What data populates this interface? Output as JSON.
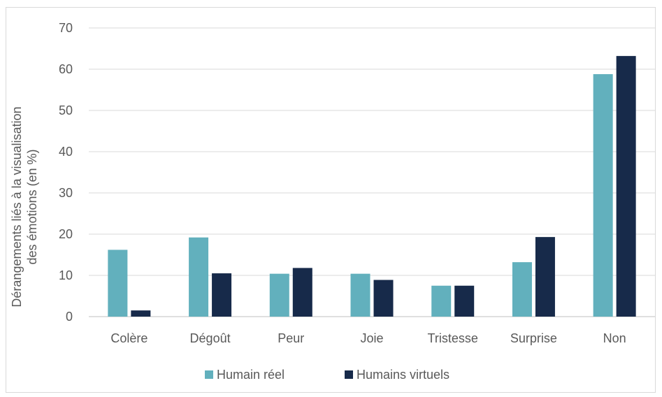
{
  "chart_data": {
    "type": "bar",
    "title": "",
    "xlabel": "",
    "ylabel_lines": [
      "Dérangements liés à la visualisation",
      "des émotions (en %)"
    ],
    "categories": [
      "Colère",
      "Dégoût",
      "Peur",
      "Joie",
      "Tristesse",
      "Surprise",
      "Non"
    ],
    "series": [
      {
        "name": "Humain réel",
        "color": "#62b0bd",
        "values": [
          16.2,
          19.2,
          10.4,
          10.4,
          7.5,
          13.2,
          58.8
        ]
      },
      {
        "name": "Humains virtuels",
        "color": "#172a4a",
        "values": [
          1.5,
          10.5,
          11.8,
          8.9,
          7.5,
          19.3,
          63.2
        ]
      }
    ],
    "ylim": [
      0,
      70
    ],
    "yticks": [
      0,
      10,
      20,
      30,
      40,
      50,
      60,
      70
    ],
    "grid": true,
    "legend_position": "bottom"
  }
}
